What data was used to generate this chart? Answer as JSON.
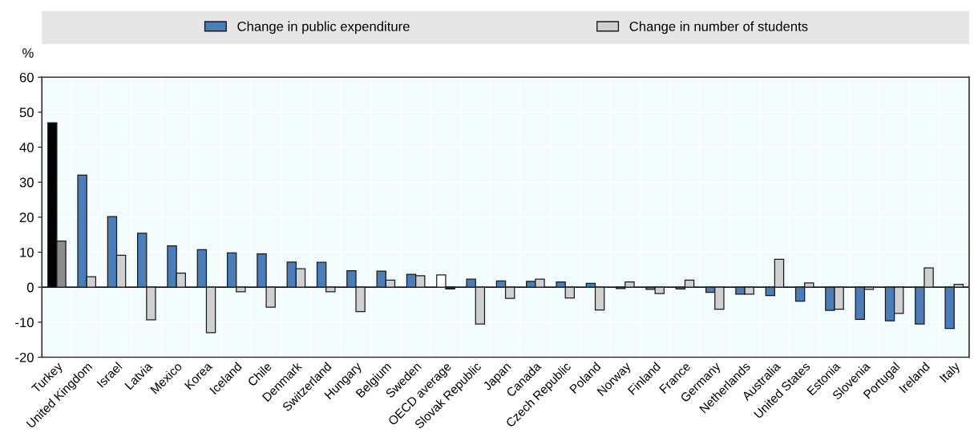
{
  "chart_data": {
    "type": "bar",
    "ylabel": "%",
    "categories": [
      "Turkey",
      "United Kingdom",
      "Israel",
      "Latvia",
      "Mexico",
      "Korea",
      "Iceland",
      "Chile",
      "Denmark",
      "Switzerland",
      "Hungary",
      "Belgium",
      "Sweden",
      "OECD average",
      "Slovak Republic",
      "Japan",
      "Canada",
      "Czech Republic",
      "Poland",
      "Norway",
      "Finland",
      "France",
      "Germany",
      "Netherlands",
      "Australia",
      "United States",
      "Estonia",
      "Slovenia",
      "Portugal",
      "Ireland",
      "Italy"
    ],
    "series": [
      {
        "name": "Change in public expenditure",
        "color": "#4a7ebb",
        "colors": [
          "#000000",
          "#4a7ebb",
          "#4a7ebb",
          "#4a7ebb",
          "#4a7ebb",
          "#4a7ebb",
          "#4a7ebb",
          "#4a7ebb",
          "#4a7ebb",
          "#4a7ebb",
          "#4a7ebb",
          "#4a7ebb",
          "#4a7ebb",
          "#ffffff",
          "#4a7ebb",
          "#4a7ebb",
          "#4a7ebb",
          "#4a7ebb",
          "#4a7ebb",
          "#4a7ebb",
          "#4a7ebb",
          "#4a7ebb",
          "#4a7ebb",
          "#4a7ebb",
          "#4a7ebb",
          "#4a7ebb",
          "#4a7ebb",
          "#4a7ebb",
          "#4a7ebb",
          "#4a7ebb",
          "#4a7ebb"
        ],
        "values": [
          47,
          32,
          20.2,
          15.4,
          11.8,
          10.7,
          9.8,
          9.5,
          7.2,
          7.1,
          4.7,
          4.6,
          3.7,
          3.5,
          2.3,
          1.8,
          1.7,
          1.5,
          1.1,
          -0.4,
          -0.6,
          -0.5,
          -1.5,
          -2,
          -2.4,
          -4,
          -6.6,
          -9.2,
          -9.6,
          -10.5,
          -11.8
        ]
      },
      {
        "name": "Change in number of students",
        "color": "#d0d0d0",
        "colors": [
          "#8c8c8c",
          "#d0d0d0",
          "#d0d0d0",
          "#d0d0d0",
          "#d0d0d0",
          "#d0d0d0",
          "#d0d0d0",
          "#d0d0d0",
          "#d0d0d0",
          "#d0d0d0",
          "#d0d0d0",
          "#d0d0d0",
          "#d0d0d0",
          "#303030",
          "#d0d0d0",
          "#d0d0d0",
          "#d0d0d0",
          "#d0d0d0",
          "#d0d0d0",
          "#d0d0d0",
          "#d0d0d0",
          "#d0d0d0",
          "#d0d0d0",
          "#d0d0d0",
          "#d0d0d0",
          "#d0d0d0",
          "#d0d0d0",
          "#d0d0d0",
          "#d0d0d0",
          "#d0d0d0",
          "#d0d0d0"
        ],
        "values": [
          13.2,
          3,
          9.1,
          -9.3,
          4,
          -13,
          -1.3,
          -5.7,
          5.3,
          -1.3,
          -7,
          2,
          3.3,
          -0.5,
          -10.5,
          -3.2,
          2.3,
          -3.1,
          -6.5,
          1.5,
          -1.8,
          2,
          -6.3,
          -2,
          8,
          1.2,
          -6.3,
          -0.6,
          -7.5,
          5.5,
          0.8
        ]
      }
    ],
    "ylim": [
      -20,
      60
    ],
    "yticks": [
      -20,
      -10,
      0,
      10,
      20,
      30,
      40,
      50,
      60
    ],
    "grid": true,
    "legend": "top"
  }
}
